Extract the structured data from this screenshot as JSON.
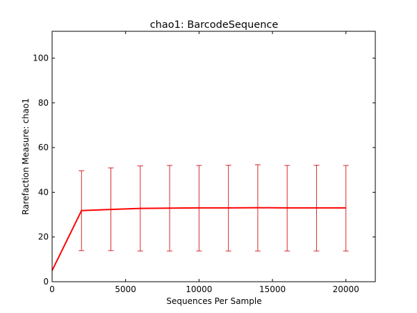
{
  "chart_data": {
    "type": "line",
    "title": "chao1: BarcodeSequence",
    "xlabel": "Sequences Per Sample",
    "ylabel": "Rarefaction Measure: chao1",
    "xlim": [
      0,
      22000
    ],
    "ylim": [
      0,
      112
    ],
    "xticks": [
      0,
      5000,
      10000,
      15000,
      20000
    ],
    "yticks": [
      0,
      20,
      40,
      60,
      80,
      100
    ],
    "grid": false,
    "legend": "none",
    "colors": {
      "series": "#ff0000",
      "errorbar": "#d62728",
      "axes": "#000000",
      "background": "#ffffff"
    },
    "series": [
      {
        "x": [
          0,
          2000,
          4000,
          6000,
          8000,
          10000,
          12000,
          14000,
          16000,
          18000,
          20000
        ],
        "y": [
          5,
          31.8,
          32.3,
          32.8,
          32.9,
          33.0,
          33.0,
          33.1,
          33.0,
          33.0,
          33.0
        ],
        "yerr_low": [
          null,
          13.9,
          13.9,
          13.7,
          13.7,
          13.7,
          13.7,
          13.7,
          13.7,
          13.7,
          13.7
        ],
        "yerr_high": [
          null,
          49.6,
          50.9,
          51.8,
          52.0,
          52.0,
          52.1,
          52.3,
          52.0,
          52.1,
          52.0
        ]
      }
    ]
  }
}
